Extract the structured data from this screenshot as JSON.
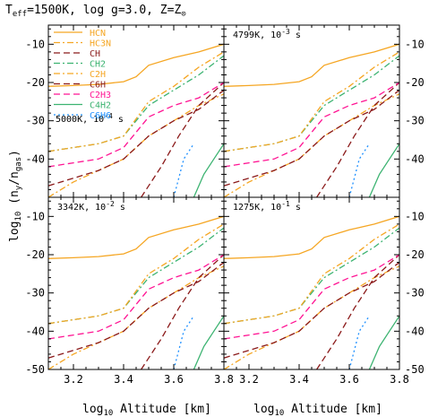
{
  "figure": {
    "title": "T_eff=1500K, log g=3.0, Z=Z_⊙",
    "title_parts": {
      "t": "T",
      "t_sub": "eff",
      "rest": "=1500K, log g=3.0, Z=Z",
      "z_sub": "⊙"
    },
    "ylabel": "log10 (ny/ngas)",
    "ylabel_parts": {
      "a": "log",
      "a_sub": "10",
      "b": " (n",
      "b_sub": "y",
      "c": "/n",
      "c_sub": "gas",
      "d": ")"
    },
    "xlabel": "log10 Altitude [km]",
    "xlabel_parts": {
      "a": "log",
      "a_sub": "10",
      "b": " Altitude [km]"
    }
  },
  "legend": [
    {
      "name": "HCN",
      "color": "#f5a623",
      "dash": "solid"
    },
    {
      "name": "HC3N",
      "color": "#f5a623",
      "dash": "dashdot"
    },
    {
      "name": "CH",
      "color": "#8b1a1a",
      "dash": "dash"
    },
    {
      "name": "CH2",
      "color": "#3cb371",
      "dash": "dashdot"
    },
    {
      "name": "C2H",
      "color": "#f5a623",
      "dash": "dashdot"
    },
    {
      "name": "C6H",
      "color": "#8b1a1a",
      "dash": "dash"
    },
    {
      "name": "C2H3",
      "color": "#ff1493",
      "dash": "dash"
    },
    {
      "name": "C4H2",
      "color": "#3cb371",
      "dash": "solid"
    },
    {
      "name": "C6H6",
      "color": "#1e90ff",
      "dash": "dot"
    }
  ],
  "chart_data": {
    "type": "line",
    "xlim": [
      3.1,
      3.8
    ],
    "ylim": [
      -50,
      -5
    ],
    "xticks": [
      "3.2",
      "3.4",
      "3.6",
      "3.8"
    ],
    "yticks": [
      "-10",
      "-20",
      "-30",
      "-40",
      "-50"
    ],
    "panels": [
      {
        "label": "5000K, 10",
        "exp": "-4",
        "unit": " s"
      },
      {
        "label": "4799K, 10",
        "exp": "-3",
        "unit": " s"
      },
      {
        "label": "3342K, 10",
        "exp": "-2",
        "unit": " s"
      },
      {
        "label": "1275K, 10",
        "exp": "-1",
        "unit": " s"
      }
    ],
    "series": [
      {
        "name": "HCN",
        "x": [
          3.1,
          3.2,
          3.3,
          3.4,
          3.45,
          3.5,
          3.6,
          3.7,
          3.8
        ],
        "y": [
          -21,
          -20.8,
          -20.5,
          -19.8,
          -18.5,
          -15.5,
          -13.5,
          -12,
          -10
        ]
      },
      {
        "name": "HC3N",
        "x": [
          3.1,
          3.2,
          3.3,
          3.4,
          3.5,
          3.6,
          3.7,
          3.8
        ],
        "y": [
          -50,
          -46,
          -43,
          -40,
          -34,
          -30,
          -26,
          -23
        ]
      },
      {
        "name": "CH",
        "x": [
          3.1,
          3.2,
          3.3,
          3.4,
          3.5,
          3.6,
          3.7,
          3.8
        ],
        "y": [
          -47,
          -45,
          -43,
          -40,
          -34,
          -30,
          -27,
          -22
        ]
      },
      {
        "name": "CH2",
        "x": [
          3.1,
          3.2,
          3.3,
          3.4,
          3.5,
          3.6,
          3.7,
          3.8
        ],
        "y": [
          -38,
          -37,
          -36,
          -34,
          -26,
          -22,
          -18,
          -13
        ]
      },
      {
        "name": "C2H",
        "x": [
          3.1,
          3.2,
          3.3,
          3.4,
          3.5,
          3.6,
          3.7,
          3.8
        ],
        "y": [
          -38,
          -37,
          -36,
          -34,
          -25,
          -21,
          -16,
          -12
        ]
      },
      {
        "name": "C6H",
        "x": [
          3.47,
          3.55,
          3.62,
          3.7,
          3.8
        ],
        "y": [
          -50,
          -42,
          -34,
          -26,
          -20
        ]
      },
      {
        "name": "C2H3",
        "x": [
          3.1,
          3.2,
          3.3,
          3.4,
          3.5,
          3.6,
          3.7,
          3.8
        ],
        "y": [
          -42,
          -41,
          -40,
          -37,
          -29,
          -26,
          -24,
          -20
        ]
      },
      {
        "name": "C4H2",
        "x": [
          3.68,
          3.72,
          3.76,
          3.8
        ],
        "y": [
          -50,
          -44,
          -40,
          -36
        ]
      },
      {
        "name": "C6H6",
        "x": [
          3.6,
          3.64,
          3.68
        ],
        "y": [
          -50,
          -40,
          -36
        ]
      }
    ]
  }
}
